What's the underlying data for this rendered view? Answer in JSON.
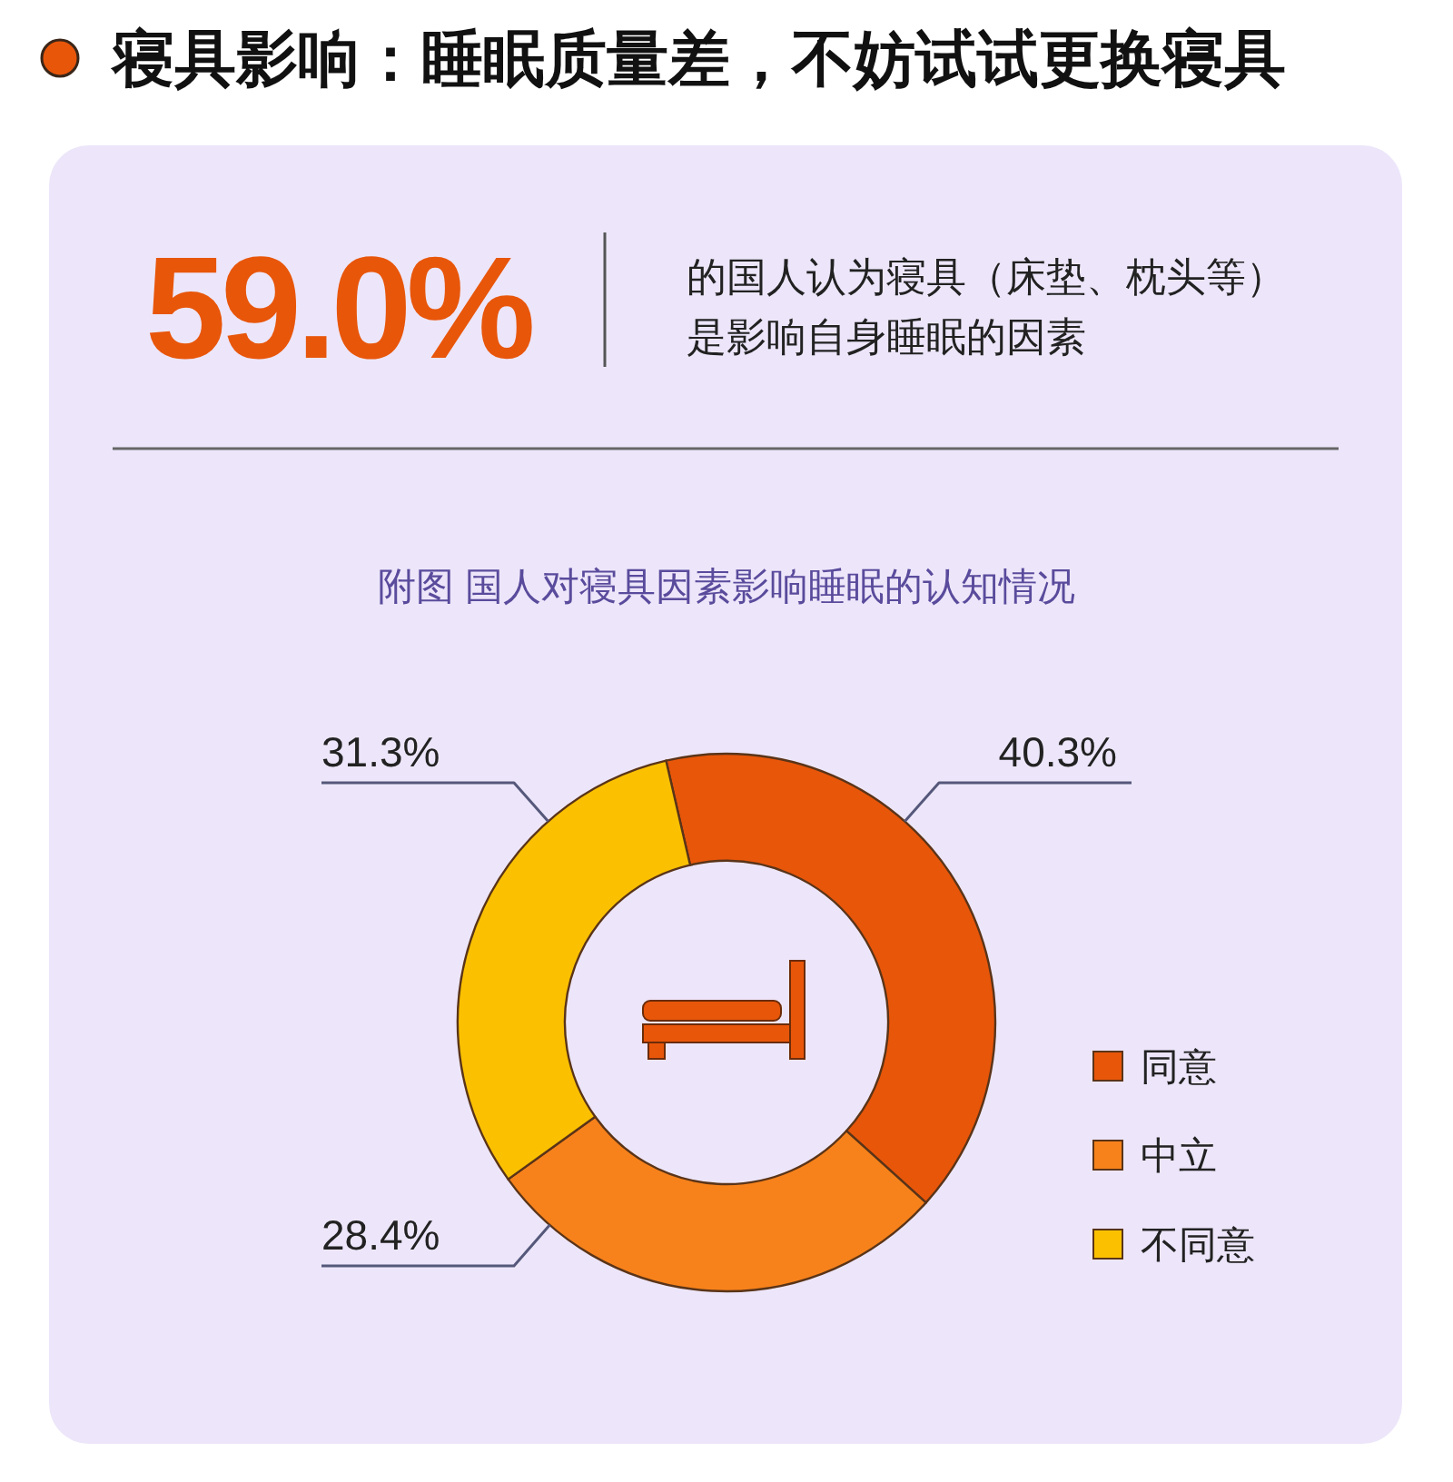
{
  "chart_data": {
    "type": "donut",
    "title": "寝具影响：睡眠质量差，不妨试试更换寝具",
    "subtitle": "附图 国人对寝具因素影响睡眠的认知情况",
    "annotations": [
      "59.0%",
      "的国人认为寝具（床垫、枕头等）",
      "是影响自身睡眠的因素"
    ],
    "categories": [
      "同意",
      "中立",
      "不同意"
    ],
    "values": [
      40.3,
      28.4,
      31.3
    ],
    "colors": [
      "#e8560a",
      "#f7821b",
      "#fbc100"
    ],
    "value_labels": [
      "40.3%",
      "28.4%",
      "31.3%"
    ],
    "legend": "bottom right"
  }
}
